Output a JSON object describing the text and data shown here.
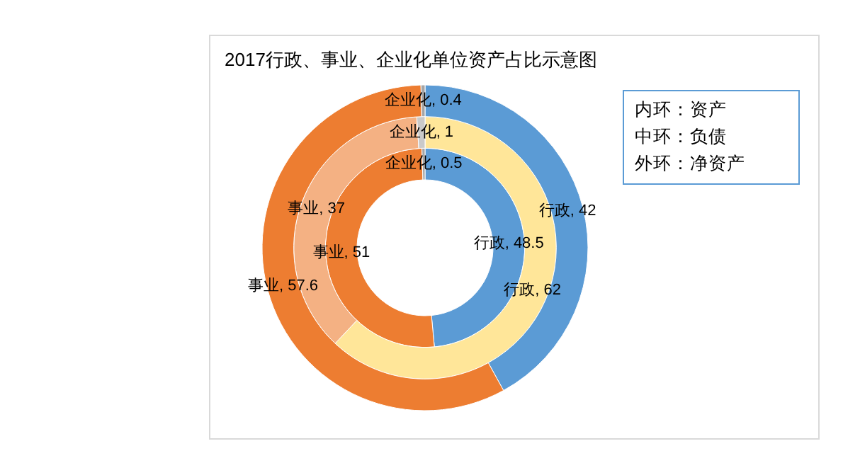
{
  "chart_data": {
    "type": "donut",
    "title": "2017行政、事业、企业化单位资产占比示意图",
    "categories": [
      "行政",
      "事业",
      "企业化"
    ],
    "series": [
      {
        "colors": [
          "#5b9bd5",
          "#ed7d31",
          "#a5a5a5"
        ],
        "values": [
          48.5,
          51,
          0.5
        ],
        "value_labels": [
          ", 48.5",
          ", 51",
          ", 0.5"
        ]
      },
      {
        "colors": [
          "#ffe699",
          "#f4b183",
          "#c9c9c9"
        ],
        "values": [
          62,
          37,
          1
        ],
        "value_labels": [
          ", 62",
          ", 37",
          ", 1"
        ]
      },
      {
        "colors": [
          "#5b9bd5",
          "#ed7d31",
          "#a5a5a5"
        ],
        "values": [
          42,
          57.6,
          0.4
        ],
        "value_labels": [
          ", 42",
          ", 57.6",
          ", 0.4"
        ]
      }
    ],
    "annotations": [
      "内环：资产",
      "中环：负债",
      "外环：净资产"
    ]
  }
}
